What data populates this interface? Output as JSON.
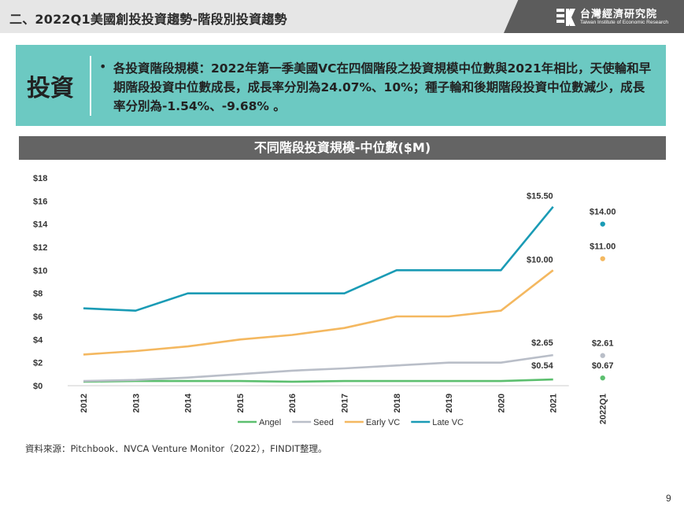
{
  "header": {
    "title": "二、2022Q1美國創投投資趨勢-階段別投資趨勢",
    "logo_cn": "台灣經濟研究院",
    "logo_en": "Taiwan Institute of Economic Research"
  },
  "callout": {
    "tag": "投資",
    "bullet": "•",
    "text": "各投資階段規模：2022年第一季美國VC在四個階段之投資規模中位數與2021年相比，天使輪和早期階段投資中位數成長，成長率分別為24.07%、10%；種子輪和後期階段投資中位數減少，成長率分別為-1.54%、-9.68% 。"
  },
  "colors": {
    "callout_bg": "#6cc9c2",
    "angel": "#5cbf6f",
    "seed": "#b9bec8",
    "early": "#f4b860",
    "late": "#1a9bb5"
  },
  "chart_data": {
    "type": "line",
    "title": "不同階段投資規模-中位數($M)",
    "categories": [
      "2012",
      "2013",
      "2014",
      "2015",
      "2016",
      "2017",
      "2018",
      "2019",
      "2020",
      "2021"
    ],
    "yticks": [
      "$0",
      "$2",
      "$4",
      "$6",
      "$8",
      "$10",
      "$12",
      "$14",
      "$16",
      "$18"
    ],
    "ylim": [
      0,
      18
    ],
    "grid": false,
    "legend_position": "bottom",
    "series": [
      {
        "name": "Angel",
        "color": "#5cbf6f",
        "values": [
          0.35,
          0.4,
          0.4,
          0.4,
          0.35,
          0.4,
          0.4,
          0.4,
          0.4,
          0.54
        ]
      },
      {
        "name": "Seed",
        "color": "#b9bec8",
        "values": [
          0.4,
          0.5,
          0.7,
          1.0,
          1.3,
          1.5,
          1.75,
          2.0,
          2.0,
          2.65
        ]
      },
      {
        "name": "Early VC",
        "color": "#f4b860",
        "values": [
          2.7,
          3.0,
          3.4,
          4.0,
          4.4,
          5.0,
          6.0,
          6.0,
          6.5,
          10.0
        ]
      },
      {
        "name": "Late VC",
        "color": "#1a9bb5",
        "values": [
          6.7,
          6.5,
          8.0,
          8.0,
          8.0,
          8.0,
          10.0,
          10.0,
          10.0,
          15.5
        ]
      }
    ],
    "end_labels": [
      {
        "series": "Late VC",
        "text": "$15.50",
        "value": 15.5
      },
      {
        "series": "Early VC",
        "text": "$10.00",
        "value": 10.0
      },
      {
        "series": "Seed",
        "text": "$2.65",
        "value": 2.65
      },
      {
        "series": "Angel",
        "text": "$0.54",
        "value": 0.54
      }
    ],
    "q1_category": "2022Q1",
    "q1_points": [
      {
        "series": "Late VC",
        "value": 14.0,
        "text": "$14.00"
      },
      {
        "series": "Early VC",
        "value": 11.0,
        "text": "$11.00"
      },
      {
        "series": "Seed",
        "value": 2.61,
        "text": "$2.61"
      },
      {
        "series": "Angel",
        "value": 0.67,
        "text": "$0.67"
      }
    ]
  },
  "source": "資料來源：Pitchbook．NVCA Venture Monitor（2022），FINDIT整理。",
  "page_number": "9"
}
